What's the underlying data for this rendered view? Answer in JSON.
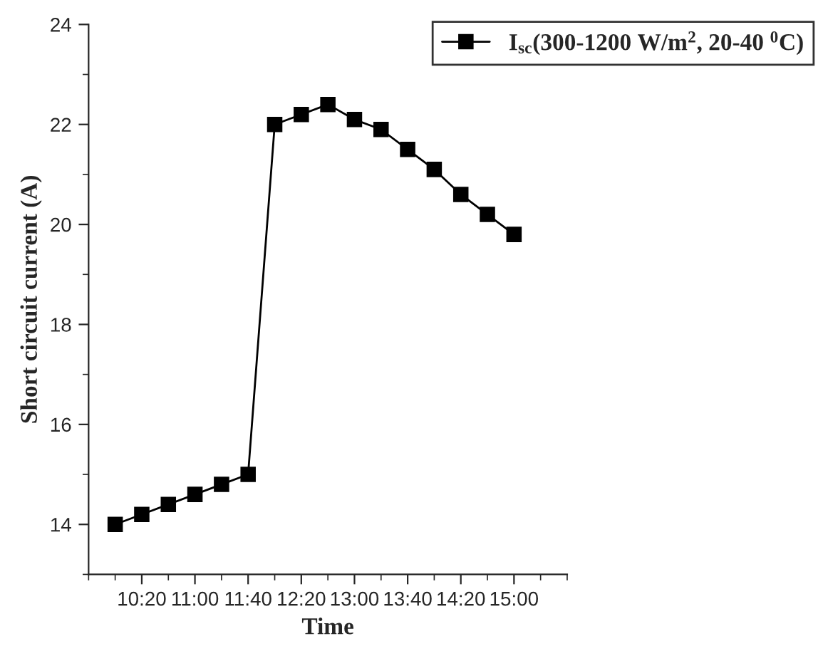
{
  "chart_data": {
    "type": "line",
    "xlabel": "Time",
    "ylabel": "Short circuit current (A)",
    "x": [
      10.0,
      10.3333,
      10.6667,
      11.0,
      11.3333,
      11.6667,
      12.0,
      12.3333,
      12.6667,
      13.0,
      13.3333,
      13.6667,
      14.0,
      14.3333,
      14.6667,
      15.0
    ],
    "series": [
      {
        "name": "I$_{sc}$(300-1200 W/m$^{2}$, 20-40 $^{0}$C)",
        "color": "#000000",
        "values": [
          14.0,
          14.2,
          14.4,
          14.6,
          14.8,
          15.0,
          22.0,
          22.2,
          22.4,
          22.1,
          21.9,
          21.5,
          21.1,
          20.6,
          20.2,
          19.8
        ]
      }
    ],
    "xlim": [
      9.6667,
      15.6667
    ],
    "xticks": [
      {
        "value": 9.6667,
        "label": null
      },
      {
        "value": 10.0,
        "label": null
      },
      {
        "value": 10.3333,
        "label": "10:20"
      },
      {
        "value": 10.6667,
        "label": null
      },
      {
        "value": 11.0,
        "label": "11:00"
      },
      {
        "value": 11.3333,
        "label": null
      },
      {
        "value": 11.6667,
        "label": "11:40"
      },
      {
        "value": 12.0,
        "label": null
      },
      {
        "value": 12.3333,
        "label": "12:20"
      },
      {
        "value": 12.6667,
        "label": null
      },
      {
        "value": 13.0,
        "label": "13:00"
      },
      {
        "value": 13.3333,
        "label": null
      },
      {
        "value": 13.6667,
        "label": "13:40"
      },
      {
        "value": 14.0,
        "label": null
      },
      {
        "value": 14.3333,
        "label": "14:20"
      },
      {
        "value": 14.6667,
        "label": null
      },
      {
        "value": 15.0,
        "label": "15:00"
      },
      {
        "value": 15.3333,
        "label": null
      },
      {
        "value": 15.6667,
        "label": null
      }
    ],
    "ylim": [
      13,
      24
    ],
    "yticks": [
      {
        "value": 13,
        "label": null
      },
      14,
      {
        "value": 15,
        "label": null
      },
      16,
      {
        "value": 17,
        "label": null
      },
      18,
      {
        "value": 19,
        "label": null
      },
      20,
      {
        "value": 21,
        "label": null
      },
      22,
      {
        "value": 23,
        "label": null
      },
      24
    ],
    "marker": "square",
    "line_style": "solid",
    "legend": "top right",
    "grid": false
  }
}
